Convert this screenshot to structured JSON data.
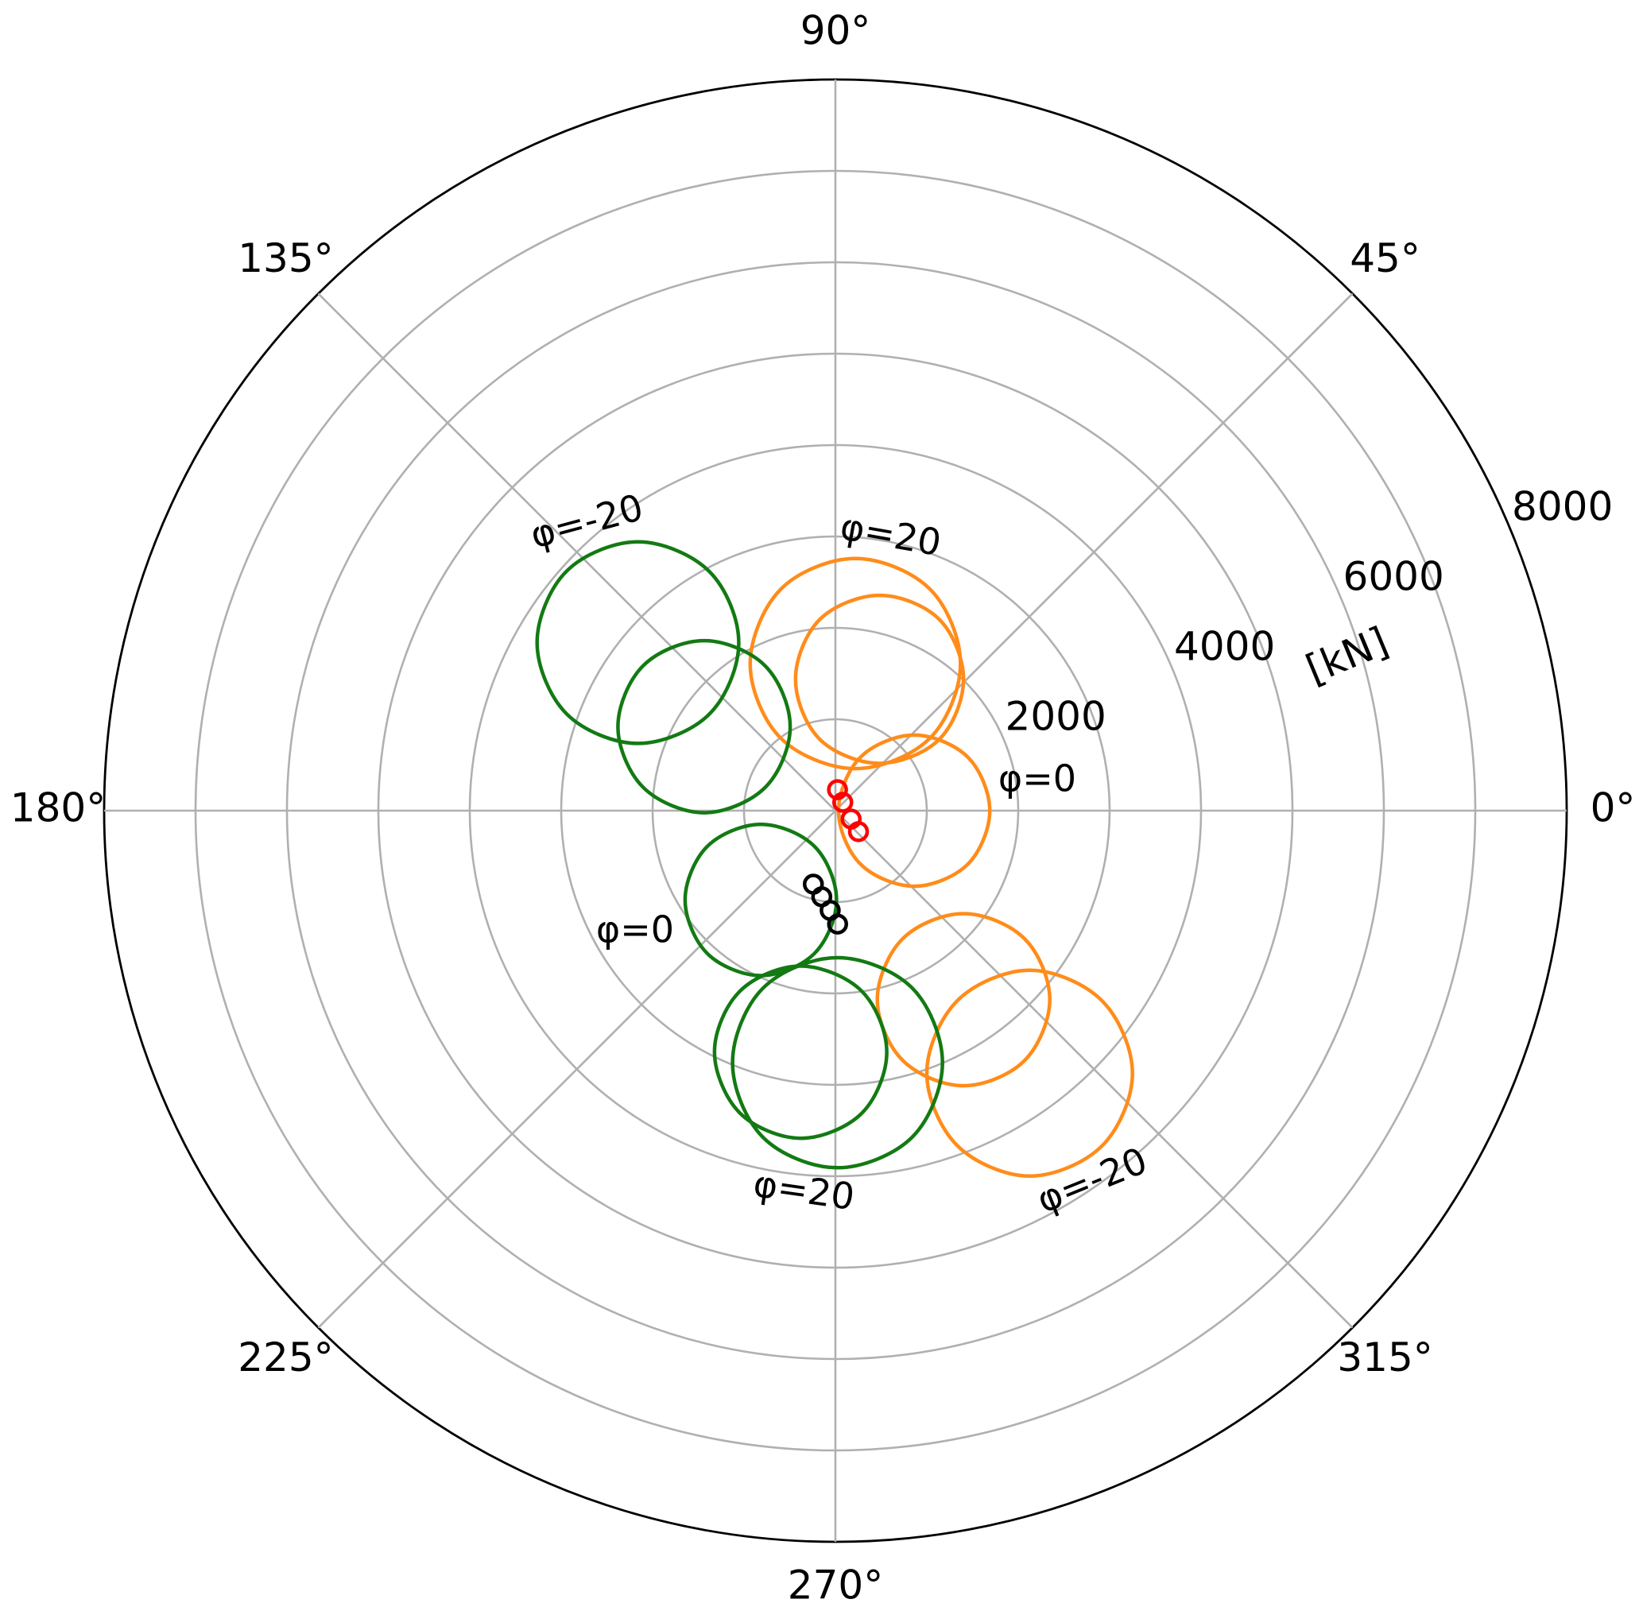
{
  "chart_data": {
    "type": "polar",
    "xlim": [
      0,
      360
    ],
    "xticks": [
      {
        "value": 0,
        "label": "0°"
      },
      {
        "value": 45,
        "label": "45°"
      },
      {
        "value": 90,
        "label": "90°"
      },
      {
        "value": 135,
        "label": "135°"
      },
      {
        "value": 180,
        "label": "180°"
      },
      {
        "value": 225,
        "label": "225°"
      },
      {
        "value": 270,
        "label": "270°"
      },
      {
        "value": 315,
        "label": "315°"
      }
    ],
    "ylim": [
      0,
      8000
    ],
    "yticks": [
      2000,
      4000,
      6000,
      8000
    ],
    "minor_yticks": [
      1000,
      3000,
      5000,
      7000
    ],
    "ylabel": "[kN]",
    "grid": true,
    "annotations": [
      "φ=-20",
      "φ=20",
      "φ=0",
      "φ=0",
      "φ=20",
      "φ=-20"
    ],
    "series": [
      {
        "color": "#ff8c1a",
        "theta": [
          0,
          22.0,
          43.8,
          64.8,
          0,
          295.2,
          316.2,
          338.0
        ],
        "r": [
          1689,
          1562,
          1195,
          648,
          34,
          648,
          1195,
          1562
        ]
      },
      {
        "color": "#ff8c1a",
        "theta": [
          49.6,
          66.9,
          85.5,
          103.8,
          120.1,
          127.0,
          64.6,
          37.5
        ],
        "r": [
          2111,
          2636,
          2767,
          2497,
          1858,
          993,
          509,
          1303
        ]
      },
      {
        "color": "#ff8c1a",
        "theta": [
          45.7,
          61.5,
          78.4,
          94.7,
          106.9,
          102.4,
          47.0,
          34.5
        ],
        "r": [
          2007,
          2381,
          2405,
          2098,
          1501,
          800,
          708,
          1380
        ]
      },
      {
        "color": "#ff8c1a",
        "theta": [
          318.6,
          325.9,
          321.2,
          297.7,
          282.5,
          285.1,
          295.0,
          307.1
        ],
        "r": [
          3126,
          2498,
          1798,
          1583,
          2119,
          2832,
          3321,
          3429
        ]
      },
      {
        "color": "#ff8c1a",
        "theta": [
          318.5,
          324.5,
          320.6,
          302.7,
          289.2,
          290.0,
          298.0,
          308.5
        ],
        "r": [
          4339,
          3584,
          2751,
          2470,
          3041,
          3900,
          4528,
          4686
        ]
      },
      {
        "color": "#137a13",
        "theta": [
          119.9,
          117.8,
          126.3,
          138.3,
          150.6,
          160.2,
          161.2,
          142.5
        ],
        "r": [
          2121,
          2960,
          3649,
          3939,
          3746,
          3125,
          2282,
          1737
        ]
      },
      {
        "color": "#137a13",
        "theta": [
          118.3,
          115.9,
          127.7,
          143.0,
          158.9,
          173.1,
          180.9,
          161.8
        ],
        "r": [
          1043,
          1763,
          2351,
          2634,
          2550,
          2118,
          1436,
          810
        ]
      },
      {
        "color": "#137a13",
        "theta": [
          270.7,
          239.5,
          190.4,
          195.6,
          210.7,
          228.1,
          245.7,
          261.6
        ],
        "r": [
          977,
          453,
          830,
          1455,
          1912,
          2099,
          1980,
          1580
        ]
      },
      {
        "color": "#137a13",
        "theta": [
          282.0,
          278.3,
          257.4,
          242.1,
          243.4,
          252.5,
          264.0,
          275.0
        ],
        "r": [
          2702,
          1997,
          1742,
          2236,
          2954,
          3470,
          3604,
          3322
        ]
      },
      {
        "color": "#137a13",
        "theta": [
          293.0,
          293.4,
          270.8,
          247.8,
          247.8,
          257.5,
          270.3,
          283.2
        ],
        "r": [
          2997,
          2115,
          1609,
          2097,
          2978,
          3661,
          3907,
          3671
        ]
      },
      {
        "color": "#ff0000",
        "marker": "o",
        "theta": [
          84.3,
          48.8,
          331.9,
          317.7
        ],
        "r": [
          231,
          122,
          195,
          341
        ]
      },
      {
        "color": "#000000",
        "marker": "o",
        "theta": [
          253.3,
          261.0,
          267.0,
          271.1
        ],
        "r": [
          840,
          954,
          1093,
          1241
        ]
      }
    ]
  }
}
